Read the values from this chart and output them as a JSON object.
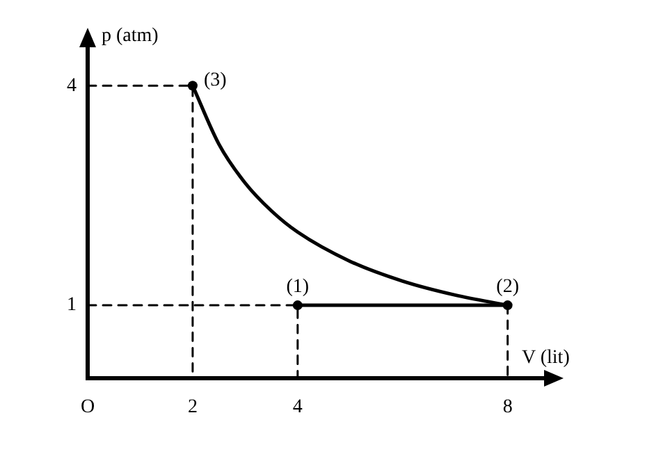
{
  "chart_data": {
    "type": "line",
    "xlabel": "V (lit)",
    "ylabel": "p (atm)",
    "xlim": [
      0,
      8.8
    ],
    "ylim": [
      0,
      4.6
    ],
    "xticks": [
      {
        "value": 0,
        "label": "O"
      },
      2,
      4,
      8
    ],
    "yticks": [
      1,
      4
    ],
    "grid": false,
    "legend": false,
    "series": [
      {
        "color": "#000000",
        "x": [
          2,
          2.5,
          3,
          3.5,
          4,
          5,
          6,
          7,
          8
        ],
        "values": [
          4,
          3.2,
          2.67,
          2.29,
          2,
          1.6,
          1.33,
          1.14,
          1
        ],
        "marker": "none",
        "line_style": "solid"
      },
      {
        "color": "#000000",
        "x": [
          4,
          8
        ],
        "values": [
          1,
          1
        ],
        "marker": "none",
        "line_style": "solid"
      },
      {
        "color": "#000000",
        "x": [
          0,
          2,
          2
        ],
        "values": [
          4,
          4,
          0
        ],
        "marker": "none",
        "line_style": "dashed"
      },
      {
        "color": "#000000",
        "x": [
          0,
          4,
          4
        ],
        "values": [
          1,
          1,
          0
        ],
        "marker": "none",
        "line_style": "dashed"
      },
      {
        "color": "#000000",
        "x": [
          8,
          8
        ],
        "values": [
          1,
          0
        ],
        "marker": "none",
        "line_style": "dashed"
      },
      {
        "type": "scatter",
        "color": "#000000",
        "x": [
          4,
          8,
          2
        ],
        "values": [
          1,
          1,
          4
        ],
        "marker": "circle"
      }
    ],
    "annotations": [
      {
        "text": "(1)",
        "x": 4,
        "y": 1
      },
      {
        "text": "(2)",
        "x": 8,
        "y": 1
      },
      {
        "text": "(3)",
        "x": 2,
        "y": 4
      }
    ]
  }
}
